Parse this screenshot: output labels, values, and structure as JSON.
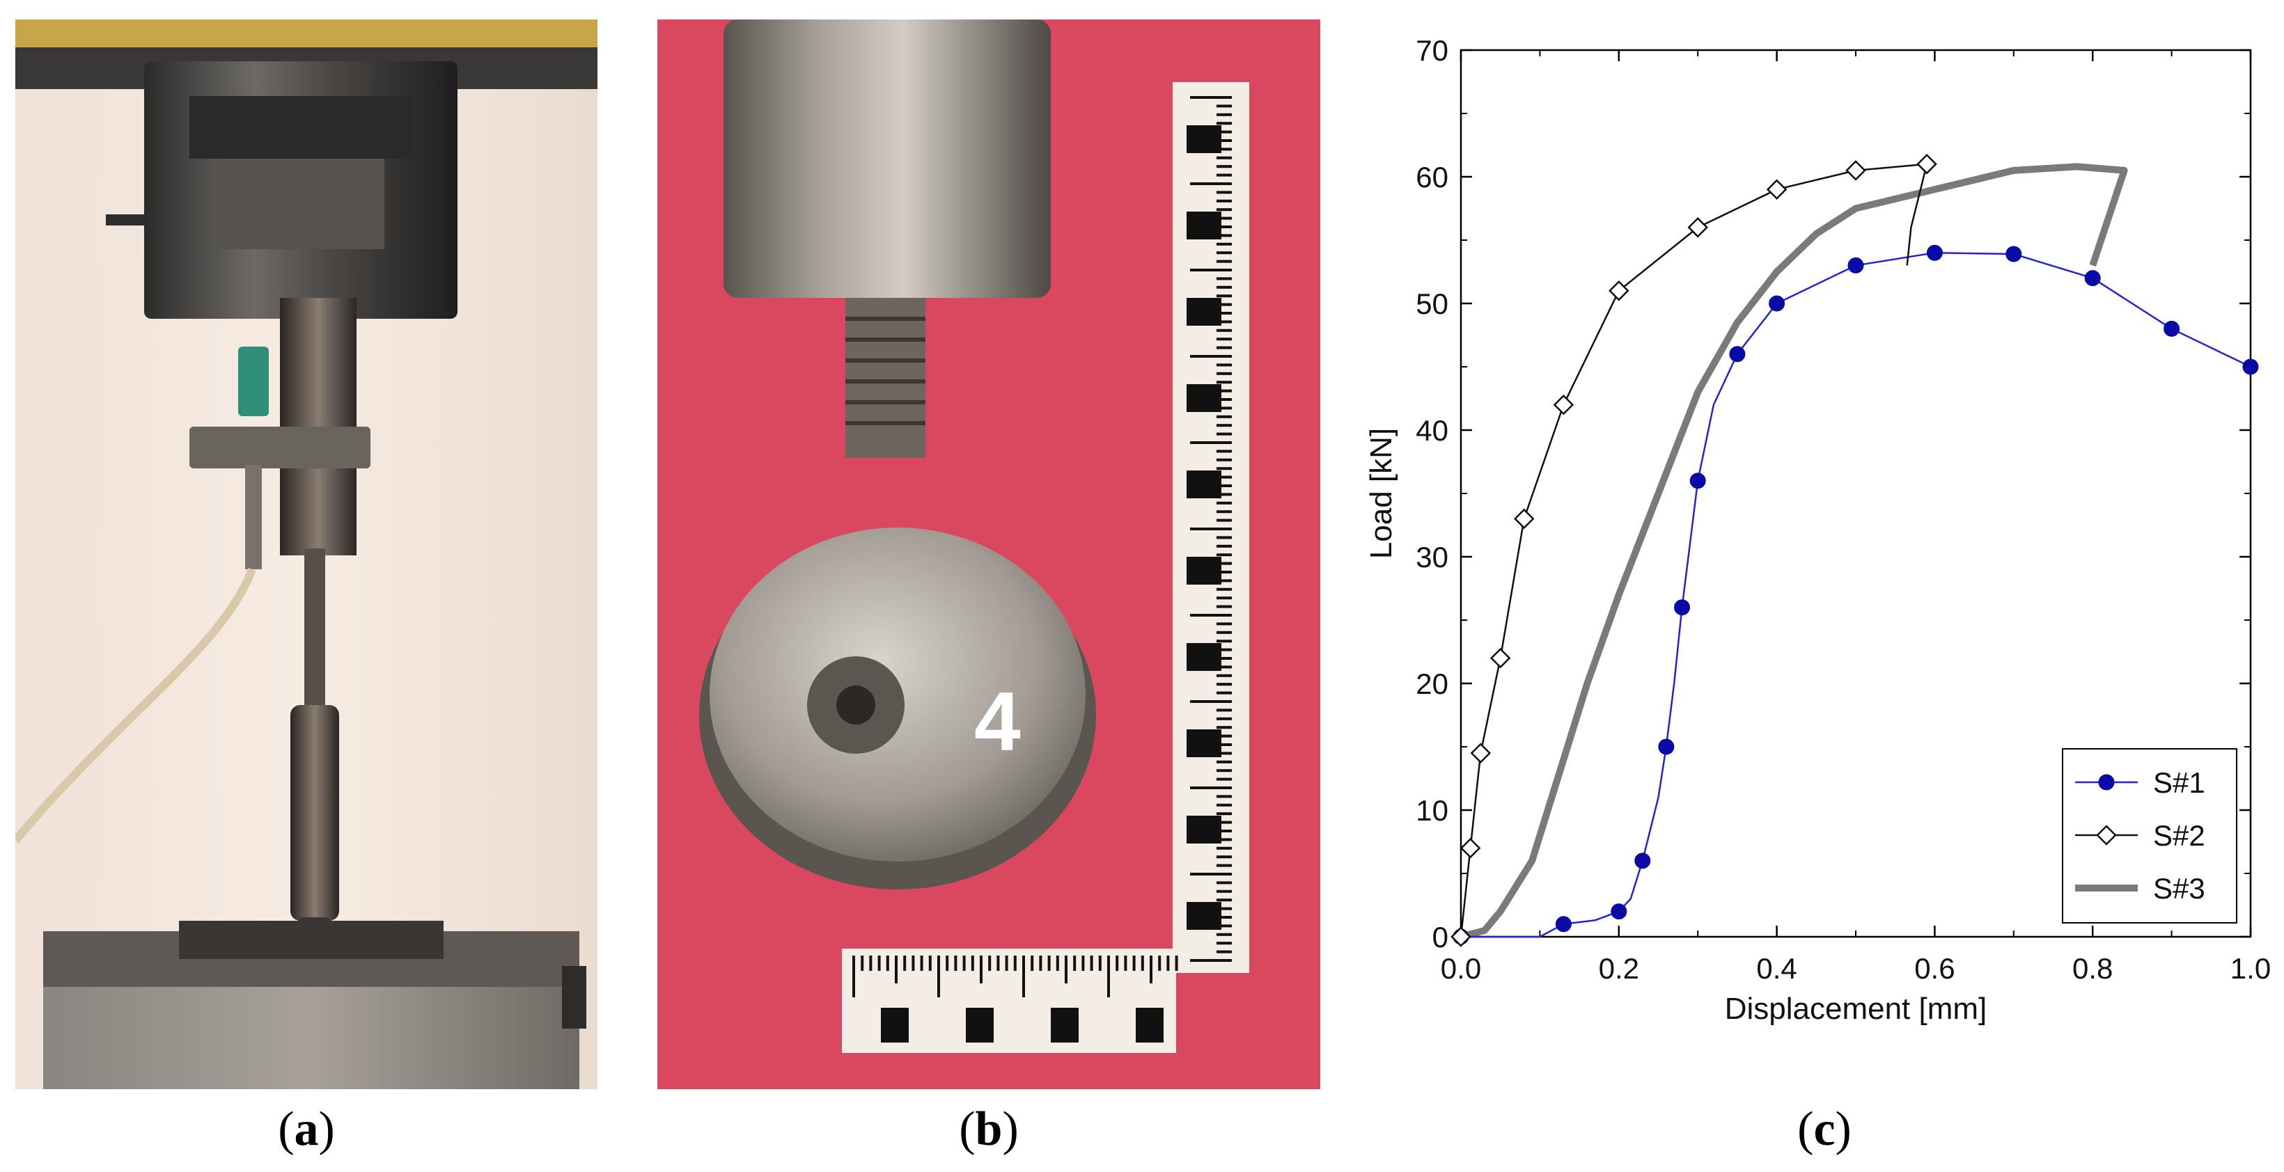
{
  "captions": {
    "a": "a",
    "b": "b",
    "c": "c"
  },
  "photo_b": {
    "specimen_label": "4"
  },
  "chart_data": {
    "type": "line",
    "title": "",
    "xlabel": "Displacement [mm]",
    "ylabel": "Load  [kN]",
    "xlim": [
      0.0,
      1.0
    ],
    "ylim": [
      0,
      70
    ],
    "x_ticks": [
      0.0,
      0.2,
      0.4,
      0.6,
      0.8,
      1.0
    ],
    "x_tick_labels": [
      "0.0",
      "0.2",
      "0.4",
      "0.6",
      "0.8",
      "1.0"
    ],
    "y_ticks": [
      0,
      10,
      20,
      30,
      40,
      50,
      60,
      70
    ],
    "y_tick_labels": [
      "0",
      "10",
      "20",
      "30",
      "40",
      "50",
      "60",
      "70"
    ],
    "grid": false,
    "legend_position": "bottom-right",
    "series": [
      {
        "name": "S#1",
        "color": "#2323d6",
        "marker": "filled-circle",
        "marker_color": "#0a0aa6",
        "x": [
          0.0,
          0.02,
          0.05,
          0.1,
          0.13,
          0.17,
          0.2,
          0.215,
          0.23,
          0.25,
          0.26,
          0.27,
          0.28,
          0.29,
          0.3,
          0.32,
          0.35,
          0.4,
          0.5,
          0.6,
          0.7,
          0.8,
          0.9,
          1.0
        ],
        "y": [
          0,
          0,
          0,
          0,
          1,
          1.3,
          2,
          3,
          6,
          11,
          15,
          20,
          26,
          31,
          36,
          42,
          46,
          50,
          53,
          54,
          53.9,
          52,
          48,
          45
        ],
        "markers_x": [
          0.0,
          0.13,
          0.2,
          0.23,
          0.26,
          0.28,
          0.3,
          0.35,
          0.4,
          0.5,
          0.6,
          0.7,
          0.8,
          0.9,
          1.0
        ],
        "markers_y": [
          0,
          1,
          2,
          6,
          15,
          26,
          36,
          46,
          50,
          53,
          54,
          53.9,
          52,
          48,
          45
        ]
      },
      {
        "name": "S#2",
        "color": "#111111",
        "marker": "open-diamond",
        "marker_color": "#111111",
        "x": [
          0.0,
          0.012,
          0.025,
          0.05,
          0.08,
          0.13,
          0.2,
          0.3,
          0.4,
          0.5,
          0.59,
          0.57,
          0.565
        ],
        "y": [
          0,
          7,
          14.5,
          22,
          33,
          42,
          51,
          56,
          59,
          60.5,
          61,
          56,
          53
        ],
        "markers_x": [
          0.0,
          0.012,
          0.025,
          0.05,
          0.08,
          0.13,
          0.2,
          0.3,
          0.4,
          0.5,
          0.59
        ],
        "markers_y": [
          0,
          7,
          14.5,
          22,
          33,
          42,
          51,
          56,
          59,
          60.5,
          61
        ]
      },
      {
        "name": "S#3",
        "color": "#7a7a7a",
        "marker": "none",
        "x": [
          0.0,
          0.03,
          0.05,
          0.07,
          0.09,
          0.12,
          0.16,
          0.2,
          0.25,
          0.3,
          0.35,
          0.4,
          0.45,
          0.5,
          0.6,
          0.7,
          0.78,
          0.84,
          0.8
        ],
        "y": [
          0,
          0.5,
          2,
          4,
          6,
          12,
          20,
          27,
          35,
          43,
          48.5,
          52.5,
          55.5,
          57.5,
          59,
          60.5,
          60.8,
          60.5,
          53
        ],
        "markers_x": [],
        "markers_y": []
      }
    ]
  }
}
